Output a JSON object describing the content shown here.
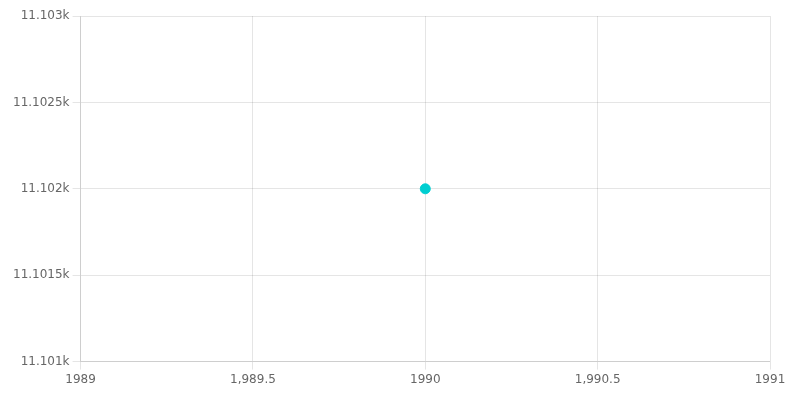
{
  "chart_data": {
    "type": "scatter",
    "x": [
      1990
    ],
    "values": [
      11102
    ],
    "color": "#00CED1",
    "xlim": [
      1989,
      1991
    ],
    "xticks": [
      1989,
      {
        "value": 1989.5,
        "label": "1,989.5"
      },
      1990,
      {
        "value": 1990.5,
        "label": "1,990.5"
      },
      1991
    ],
    "ylim": [
      11101,
      11103
    ],
    "yticks": [
      {
        "value": 11101,
        "label": "11.101k"
      },
      {
        "value": 11101.5,
        "label": "11.1015k"
      },
      {
        "value": 11102,
        "label": "11.102k"
      },
      {
        "value": 11102.5,
        "label": "11.1025k"
      },
      {
        "value": 11103,
        "label": "11.103k"
      }
    ],
    "grid": true
  }
}
